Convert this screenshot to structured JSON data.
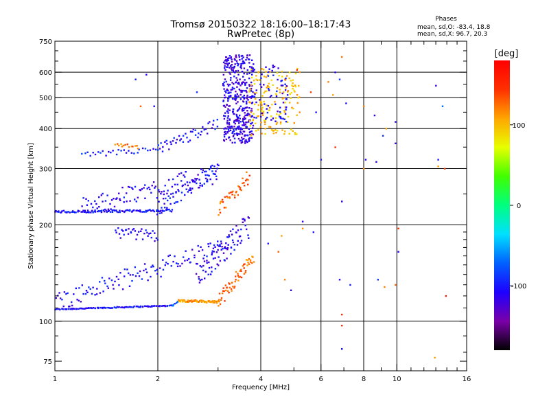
{
  "header": {
    "title": "Tromsø 20150322 18:16:00–18:17:43",
    "subtitle": "RwPretec (8p)",
    "stats_heading": "Phases",
    "stats_o": "mean, sd,O:  -83.4, 18.8",
    "stats_x": "mean, sd,X:  96.7, 20.3"
  },
  "colorbar": {
    "label": "[deg]",
    "range": [
      -180,
      180
    ],
    "ticks": [
      {
        "value": 100,
        "label": "100"
      },
      {
        "value": 0,
        "label": "0"
      },
      {
        "value": -100,
        "label": "-100"
      }
    ],
    "stops": [
      "#000000",
      "#7a00a8",
      "#1e00ff",
      "#0060ff",
      "#00e0ff",
      "#00ff80",
      "#40ff00",
      "#e8ff00",
      "#ffa500",
      "#ff3000",
      "#ff0000"
    ]
  },
  "chart_data": {
    "type": "scatter",
    "xlabel": "Frequency [MHz]",
    "ylabel": "Stationary phase Virtual Height [km]",
    "x_scale": "log",
    "y_scale": "log",
    "xlim": [
      1,
      16
    ],
    "ylim": [
      70,
      750
    ],
    "x_ticks": [
      {
        "value": 1,
        "label": "1"
      },
      {
        "value": 2,
        "label": "2"
      },
      {
        "value": 4,
        "label": "4"
      },
      {
        "value": 6,
        "label": "6"
      },
      {
        "value": 8,
        "label": "8"
      },
      {
        "value": 10,
        "label": "10"
      },
      {
        "value": 16,
        "label": "16"
      }
    ],
    "x_minor_ticks": [
      3,
      5,
      7,
      9,
      11,
      12,
      13,
      14,
      15
    ],
    "x_grid": [
      2,
      4,
      6,
      8,
      10
    ],
    "y_ticks": [
      {
        "value": 75,
        "label": "75"
      },
      {
        "value": 100,
        "label": "100"
      },
      {
        "value": 200,
        "label": "200"
      },
      {
        "value": 300,
        "label": "300"
      },
      {
        "value": 400,
        "label": "400"
      },
      {
        "value": 500,
        "label": "500"
      },
      {
        "value": 600,
        "label": "600"
      },
      {
        "value": 750,
        "label": "750"
      }
    ],
    "y_grid": [
      100,
      200,
      300,
      400,
      500,
      600
    ],
    "color_dimension": "phase [deg]",
    "traces": [
      {
        "x0": 1.0,
        "x1": 2.2,
        "h0": 109,
        "h1": 112,
        "phase": -105,
        "n": 110,
        "jitter": 0.004
      },
      {
        "x0": 2.2,
        "x1": 2.3,
        "h0": 112,
        "h1": 116,
        "phase": -80,
        "n": 8,
        "jitter": 0.006
      },
      {
        "x0": 2.3,
        "x1": 3.0,
        "h0": 116,
        "h1": 115,
        "phase": 115,
        "n": 70,
        "jitter": 0.008
      },
      {
        "x0": 3.0,
        "x1": 3.8,
        "h0": 115,
        "h1": 160,
        "phase": 125,
        "n": 60,
        "jitter": 0.05
      },
      {
        "x0": 1.0,
        "x1": 3.3,
        "h0": 115,
        "h1": 175,
        "phase": -105,
        "n": 130,
        "jitter": 0.07
      },
      {
        "x0": 2.6,
        "x1": 3.7,
        "h0": 140,
        "h1": 200,
        "phase": -112,
        "n": 80,
        "jitter": 0.09
      },
      {
        "x0": 1.5,
        "x1": 2.0,
        "h0": 190,
        "h1": 185,
        "phase": -110,
        "n": 35,
        "jitter": 0.04
      },
      {
        "x0": 1.0,
        "x1": 2.2,
        "h0": 220,
        "h1": 222,
        "phase": -100,
        "n": 110,
        "jitter": 0.008
      },
      {
        "x0": 1.2,
        "x1": 3.0,
        "h0": 228,
        "h1": 290,
        "phase": -110,
        "n": 110,
        "jitter": 0.07
      },
      {
        "x0": 2.0,
        "x1": 3.0,
        "h0": 225,
        "h1": 300,
        "phase": -105,
        "n": 60,
        "jitter": 0.05
      },
      {
        "x0": 3.0,
        "x1": 3.7,
        "h0": 220,
        "h1": 285,
        "phase": 130,
        "n": 40,
        "jitter": 0.05
      },
      {
        "x0": 1.2,
        "x1": 2.0,
        "h0": 330,
        "h1": 345,
        "phase": -95,
        "n": 30,
        "jitter": 0.02
      },
      {
        "x0": 1.5,
        "x1": 1.75,
        "h0": 355,
        "h1": 350,
        "phase": 125,
        "n": 14,
        "jitter": 0.015
      },
      {
        "x0": 2.0,
        "x1": 3.0,
        "h0": 345,
        "h1": 415,
        "phase": -105,
        "n": 45,
        "jitter": 0.04
      },
      {
        "x0": 3.1,
        "x1": 3.8,
        "h0": 360,
        "h1": 680,
        "phase": -115,
        "n": 420,
        "jitter": 0.0,
        "fill": true
      },
      {
        "x0": 3.7,
        "x1": 5.2,
        "h0": 380,
        "h1": 620,
        "phase": 100,
        "n": 170,
        "jitter": 0.0,
        "fill": true
      },
      {
        "x0": 3.8,
        "x1": 4.8,
        "h0": 420,
        "h1": 650,
        "phase": -110,
        "n": 70,
        "jitter": 0.0,
        "fill": true
      }
    ],
    "scatter_points": [
      {
        "x": 1.72,
        "y": 570,
        "phase": -100
      },
      {
        "x": 1.85,
        "y": 590,
        "phase": -110
      },
      {
        "x": 1.78,
        "y": 470,
        "phase": 130
      },
      {
        "x": 1.95,
        "y": 470,
        "phase": -105
      },
      {
        "x": 2.6,
        "y": 520,
        "phase": -90
      },
      {
        "x": 5.1,
        "y": 610,
        "phase": 150
      },
      {
        "x": 5.6,
        "y": 520,
        "phase": 140
      },
      {
        "x": 5.8,
        "y": 450,
        "phase": -100
      },
      {
        "x": 6.3,
        "y": 560,
        "phase": 120
      },
      {
        "x": 6.5,
        "y": 510,
        "phase": 110
      },
      {
        "x": 6.6,
        "y": 600,
        "phase": -110
      },
      {
        "x": 6.8,
        "y": 570,
        "phase": -90
      },
      {
        "x": 6.9,
        "y": 670,
        "phase": 125
      },
      {
        "x": 7.1,
        "y": 480,
        "phase": -100
      },
      {
        "x": 8.0,
        "y": 470,
        "phase": 120
      },
      {
        "x": 8.6,
        "y": 440,
        "phase": -110
      },
      {
        "x": 9.9,
        "y": 420,
        "phase": -110
      },
      {
        "x": 9.3,
        "y": 400,
        "phase": 105
      },
      {
        "x": 9.1,
        "y": 380,
        "phase": -90
      },
      {
        "x": 9.9,
        "y": 360,
        "phase": -110
      },
      {
        "x": 6.0,
        "y": 320,
        "phase": -100
      },
      {
        "x": 6.6,
        "y": 350,
        "phase": 150
      },
      {
        "x": 8.1,
        "y": 320,
        "phase": -110
      },
      {
        "x": 8.7,
        "y": 315,
        "phase": -115
      },
      {
        "x": 8.0,
        "y": 300,
        "phase": 115
      },
      {
        "x": 13.0,
        "y": 545,
        "phase": -120
      },
      {
        "x": 13.6,
        "y": 470,
        "phase": -70
      },
      {
        "x": 13.2,
        "y": 320,
        "phase": -100
      },
      {
        "x": 13.8,
        "y": 300,
        "phase": 140
      },
      {
        "x": 13.2,
        "y": 305,
        "phase": 110
      },
      {
        "x": 6.9,
        "y": 237,
        "phase": -110
      },
      {
        "x": 5.3,
        "y": 205,
        "phase": -115
      },
      {
        "x": 5.3,
        "y": 195,
        "phase": 115
      },
      {
        "x": 5.7,
        "y": 190,
        "phase": -100
      },
      {
        "x": 4.6,
        "y": 185,
        "phase": 110
      },
      {
        "x": 4.2,
        "y": 175,
        "phase": -100
      },
      {
        "x": 4.5,
        "y": 165,
        "phase": 130
      },
      {
        "x": 4.7,
        "y": 135,
        "phase": 120
      },
      {
        "x": 4.9,
        "y": 125,
        "phase": -110
      },
      {
        "x": 6.8,
        "y": 135,
        "phase": -110
      },
      {
        "x": 6.9,
        "y": 105,
        "phase": 150
      },
      {
        "x": 7.3,
        "y": 130,
        "phase": -100
      },
      {
        "x": 9.2,
        "y": 128,
        "phase": 120
      },
      {
        "x": 8.8,
        "y": 135,
        "phase": -90
      },
      {
        "x": 9.9,
        "y": 130,
        "phase": 130
      },
      {
        "x": 10.1,
        "y": 195,
        "phase": 150
      },
      {
        "x": 10.1,
        "y": 165,
        "phase": -110
      },
      {
        "x": 13.9,
        "y": 120,
        "phase": 160
      },
      {
        "x": 6.9,
        "y": 97,
        "phase": 150
      },
      {
        "x": 6.9,
        "y": 82,
        "phase": -100
      },
      {
        "x": 12.9,
        "y": 77,
        "phase": 110
      }
    ]
  }
}
